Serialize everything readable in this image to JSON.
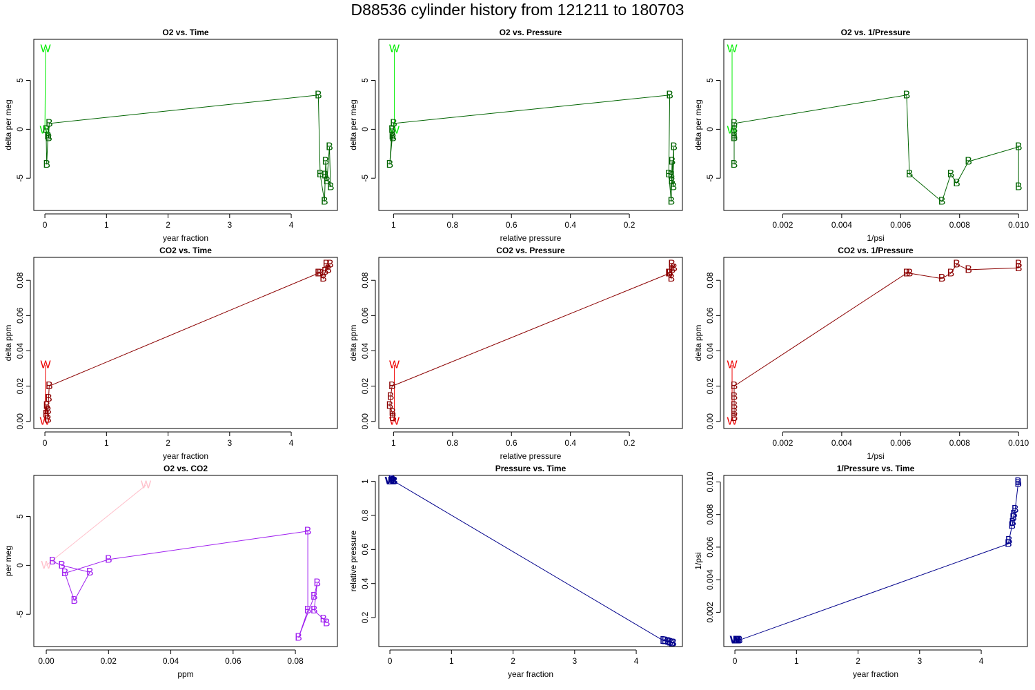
{
  "figure": {
    "title": "D88536   cylinder history from  121211  to  180703"
  },
  "colors": {
    "o2_w": "#00ee00",
    "o2_b": "#006400",
    "co2_w": "#ee0000",
    "co2_b": "#8b0000",
    "o2co2_w": "#ffc0cb",
    "o2co2_b": "#a020f0",
    "pressure_b": "#00008b"
  },
  "chart_data": [
    {
      "id": "o2-vs-time",
      "type": "line",
      "title": "O2 vs. Time",
      "xlabel": "year fraction",
      "ylabel": "delta per meg",
      "xlim": [
        -0.18,
        4.75
      ],
      "ylim": [
        -8.3,
        9.2
      ],
      "xticks": [
        0,
        1,
        2,
        3,
        4
      ],
      "yticks": [
        -5,
        0,
        5
      ],
      "series": [
        {
          "marker": "W",
          "color": "#00ee00",
          "points": [
            [
              0.0,
              -0.1
            ],
            [
              0.01,
              8.2
            ]
          ]
        },
        {
          "marker": "B",
          "color": "#006400",
          "points": [
            [
              0.02,
              -0.05
            ],
            [
              0.03,
              -3.6
            ],
            [
              0.05,
              -0.7
            ],
            [
              0.06,
              -0.9
            ],
            [
              0.07,
              0.6
            ],
            [
              4.44,
              3.5
            ],
            [
              4.47,
              -4.6
            ],
            [
              4.54,
              -7.4
            ],
            [
              4.56,
              -3.3
            ],
            [
              4.58,
              -5.3
            ],
            [
              4.62,
              -1.8
            ],
            [
              4.64,
              -5.9
            ],
            [
              4.55,
              -4.7
            ]
          ]
        }
      ]
    },
    {
      "id": "o2-vs-pressure",
      "type": "line",
      "title": "O2 vs. Pressure",
      "xlabel": "relative pressure",
      "ylabel": "delta per meg",
      "xlim": [
        1.05,
        0.02
      ],
      "ylim": [
        -8.3,
        9.2
      ],
      "xticks": [
        1.0,
        0.8,
        0.6,
        0.4,
        0.2
      ],
      "yticks": [
        -5,
        0,
        5
      ],
      "series": [
        {
          "marker": "W",
          "color": "#00ee00",
          "points": [
            [
              0.997,
              -0.1
            ],
            [
              0.997,
              8.2
            ]
          ]
        },
        {
          "marker": "B",
          "color": "#006400",
          "points": [
            [
              1.005,
              -0.05
            ],
            [
              1.013,
              -3.6
            ],
            [
              1.004,
              -0.7
            ],
            [
              1.002,
              -0.9
            ],
            [
              1.0,
              0.6
            ],
            [
              0.063,
              3.5
            ],
            [
              0.066,
              -4.6
            ],
            [
              0.058,
              -7.4
            ],
            [
              0.055,
              -3.3
            ],
            [
              0.056,
              -5.3
            ],
            [
              0.049,
              -1.8
            ],
            [
              0.051,
              -5.9
            ],
            [
              0.058,
              -4.7
            ]
          ]
        }
      ]
    },
    {
      "id": "o2-vs-inv-pressure",
      "type": "line",
      "title": "O2 vs. 1/Pressure",
      "xlabel": "1/psi",
      "ylabel": "delta per meg",
      "xlim": [
        0.0,
        0.0103
      ],
      "ylim": [
        -8.3,
        9.2
      ],
      "xticks": [
        0.002,
        0.004,
        0.006,
        0.008,
        0.01
      ],
      "xticklabels": [
        "0.002",
        "0.004",
        "0.006",
        "0.008",
        "0.010"
      ],
      "yticks": [
        -5,
        0,
        5
      ],
      "series": [
        {
          "marker": "W",
          "color": "#00ee00",
          "points": [
            [
              0.00028,
              -0.1
            ],
            [
              0.00028,
              8.2
            ]
          ]
        },
        {
          "marker": "B",
          "color": "#006400",
          "points": [
            [
              0.00035,
              -0.05
            ],
            [
              0.00035,
              -3.6
            ],
            [
              0.00035,
              -0.7
            ],
            [
              0.00035,
              -0.9
            ],
            [
              0.00035,
              0.6
            ],
            [
              0.0062,
              3.5
            ],
            [
              0.0063,
              -4.6
            ],
            [
              0.0074,
              -7.4
            ],
            [
              0.0077,
              -4.6
            ],
            [
              0.0079,
              -5.5
            ],
            [
              0.0083,
              -3.3
            ],
            [
              0.01,
              -1.8
            ],
            [
              0.01,
              -5.9
            ]
          ]
        }
      ]
    },
    {
      "id": "co2-vs-time",
      "type": "line",
      "title": "CO2 vs. Time",
      "xlabel": "year fraction",
      "ylabel": "delta ppm",
      "xlim": [
        -0.18,
        4.75
      ],
      "ylim": [
        -0.004,
        0.093
      ],
      "xticks": [
        0,
        1,
        2,
        3,
        4
      ],
      "yticks": [
        0.0,
        0.02,
        0.04,
        0.06,
        0.08
      ],
      "yticklabels": [
        "0.00",
        "0.02",
        "0.04",
        "0.06",
        "0.08"
      ],
      "series": [
        {
          "marker": "W",
          "color": "#ee0000",
          "points": [
            [
              0.0,
              0.0
            ],
            [
              0.01,
              0.032
            ]
          ]
        },
        {
          "marker": "B",
          "color": "#8b0000",
          "points": [
            [
              0.02,
              0.004
            ],
            [
              0.03,
              0.009
            ],
            [
              0.05,
              0.001
            ],
            [
              0.05,
              0.006
            ],
            [
              0.06,
              0.013
            ],
            [
              0.07,
              0.02
            ],
            [
              4.44,
              0.084
            ],
            [
              4.47,
              0.084
            ],
            [
              4.52,
              0.081
            ],
            [
              4.55,
              0.085
            ],
            [
              4.57,
              0.089
            ],
            [
              4.6,
              0.086
            ],
            [
              4.63,
              0.089
            ]
          ]
        }
      ]
    },
    {
      "id": "co2-vs-pressure",
      "type": "line",
      "title": "CO2 vs. Pressure",
      "xlabel": "relative pressure",
      "ylabel": "delta ppm",
      "xlim": [
        1.05,
        0.02
      ],
      "ylim": [
        -0.004,
        0.093
      ],
      "xticks": [
        1.0,
        0.8,
        0.6,
        0.4,
        0.2
      ],
      "yticks": [
        0.0,
        0.02,
        0.04,
        0.06,
        0.08
      ],
      "yticklabels": [
        "0.00",
        "0.02",
        "0.04",
        "0.06",
        "0.08"
      ],
      "series": [
        {
          "marker": "W",
          "color": "#ee0000",
          "points": [
            [
              0.997,
              0.0
            ],
            [
              0.997,
              0.032
            ]
          ]
        },
        {
          "marker": "B",
          "color": "#8b0000",
          "points": [
            [
              1.002,
              0.002
            ],
            [
              1.004,
              0.005
            ],
            [
              1.013,
              0.009
            ],
            [
              1.01,
              0.014
            ],
            [
              1.005,
              0.02
            ],
            [
              0.063,
              0.084
            ],
            [
              0.066,
              0.084
            ],
            [
              0.058,
              0.081
            ],
            [
              0.055,
              0.086
            ],
            [
              0.056,
              0.089
            ],
            [
              0.049,
              0.087
            ]
          ]
        }
      ]
    },
    {
      "id": "co2-vs-inv-pressure",
      "type": "line",
      "title": "CO2 vs. 1/Pressure",
      "xlabel": "1/psi",
      "ylabel": "delta ppm",
      "xlim": [
        0.0,
        0.0103
      ],
      "ylim": [
        -0.004,
        0.093
      ],
      "xticks": [
        0.002,
        0.004,
        0.006,
        0.008,
        0.01
      ],
      "xticklabels": [
        "0.002",
        "0.004",
        "0.006",
        "0.008",
        "0.010"
      ],
      "yticks": [
        0.0,
        0.02,
        0.04,
        0.06,
        0.08
      ],
      "yticklabels": [
        "0.00",
        "0.02",
        "0.04",
        "0.06",
        "0.08"
      ],
      "series": [
        {
          "marker": "W",
          "color": "#ee0000",
          "points": [
            [
              0.00028,
              0.0
            ],
            [
              0.00028,
              0.032
            ]
          ]
        },
        {
          "marker": "B",
          "color": "#8b0000",
          "points": [
            [
              0.00035,
              0.002
            ],
            [
              0.00035,
              0.005
            ],
            [
              0.00035,
              0.009
            ],
            [
              0.00035,
              0.014
            ],
            [
              0.00035,
              0.02
            ],
            [
              0.0062,
              0.084
            ],
            [
              0.0063,
              0.084
            ],
            [
              0.0074,
              0.081
            ],
            [
              0.0077,
              0.084
            ],
            [
              0.0079,
              0.089
            ],
            [
              0.0083,
              0.086
            ],
            [
              0.01,
              0.087
            ],
            [
              0.01,
              0.089
            ]
          ]
        }
      ]
    },
    {
      "id": "o2-vs-co2",
      "type": "line",
      "title": "O2 vs. CO2",
      "xlabel": "ppm",
      "ylabel": "per meg",
      "xlim": [
        -0.004,
        0.0935
      ],
      "ylim": [
        -8.3,
        9.2
      ],
      "xticks": [
        0.0,
        0.02,
        0.04,
        0.06,
        0.08
      ],
      "xticklabels": [
        "0.00",
        "0.02",
        "0.04",
        "0.06",
        "0.08"
      ],
      "yticks": [
        -5,
        0,
        5
      ],
      "series": [
        {
          "marker": "W",
          "color": "#ffc0cb",
          "points": [
            [
              0.0,
              0.0
            ],
            [
              0.032,
              8.2
            ]
          ]
        },
        {
          "marker": "B",
          "color": "#a020f0",
          "points": [
            [
              0.002,
              0.4
            ],
            [
              0.005,
              0.0
            ],
            [
              0.014,
              -0.7
            ],
            [
              0.009,
              -3.6
            ],
            [
              0.006,
              -0.8
            ],
            [
              0.02,
              0.6
            ],
            [
              0.084,
              3.5
            ],
            [
              0.084,
              -4.6
            ],
            [
              0.081,
              -7.4
            ],
            [
              0.086,
              -3.2
            ],
            [
              0.087,
              -1.8
            ],
            [
              0.086,
              -4.6
            ],
            [
              0.089,
              -5.5
            ],
            [
              0.09,
              -5.9
            ]
          ]
        }
      ]
    },
    {
      "id": "pressure-vs-time",
      "type": "line",
      "title": "Pressure vs. Time",
      "xlabel": "year fraction",
      "ylabel": "relative pressure",
      "xlim": [
        -0.18,
        4.75
      ],
      "ylim": [
        0.03,
        1.035
      ],
      "xticks": [
        0,
        1,
        2,
        3,
        4
      ],
      "yticks": [
        0.2,
        0.4,
        0.6,
        0.8,
        1.0
      ],
      "series": [
        {
          "marker": "W",
          "color": "#00008b",
          "points": [
            [
              0.0,
              1.0
            ],
            [
              0.01,
              1.0
            ]
          ]
        },
        {
          "marker": "B",
          "color": "#00008b",
          "points": [
            [
              0.02,
              1.0
            ],
            [
              0.03,
              1.01
            ],
            [
              0.05,
              1.005
            ],
            [
              0.06,
              1.0
            ],
            [
              0.07,
              1.0
            ],
            [
              4.44,
              0.065
            ],
            [
              4.47,
              0.062
            ],
            [
              4.52,
              0.058
            ],
            [
              4.55,
              0.055
            ],
            [
              4.58,
              0.051
            ],
            [
              4.6,
              0.05
            ]
          ]
        }
      ]
    },
    {
      "id": "inv-pressure-vs-time",
      "type": "line",
      "title": "1/Pressure vs. Time",
      "xlabel": "year fraction",
      "ylabel": "1/psi",
      "xlim": [
        -0.18,
        4.75
      ],
      "ylim": [
        -0.0001,
        0.0104
      ],
      "xticks": [
        0,
        1,
        2,
        3,
        4
      ],
      "yticks": [
        0.002,
        0.004,
        0.006,
        0.008,
        0.01
      ],
      "yticklabels": [
        "0.002",
        "0.004",
        "0.006",
        "0.008",
        "0.010"
      ],
      "series": [
        {
          "marker": "W",
          "color": "#00008b",
          "points": [
            [
              0.0,
              0.00028
            ],
            [
              0.01,
              0.00028
            ]
          ]
        },
        {
          "marker": "B",
          "color": "#00008b",
          "points": [
            [
              0.02,
              0.00029
            ],
            [
              0.03,
              0.00028
            ],
            [
              0.05,
              0.00029
            ],
            [
              0.07,
              0.00029
            ],
            [
              4.44,
              0.0062
            ],
            [
              4.45,
              0.0064
            ],
            [
              4.5,
              0.0073
            ],
            [
              4.51,
              0.0075
            ],
            [
              4.52,
              0.0078
            ],
            [
              4.53,
              0.008
            ],
            [
              4.55,
              0.0083
            ],
            [
              4.6,
              0.0099
            ],
            [
              4.6,
              0.01
            ]
          ]
        }
      ]
    }
  ]
}
